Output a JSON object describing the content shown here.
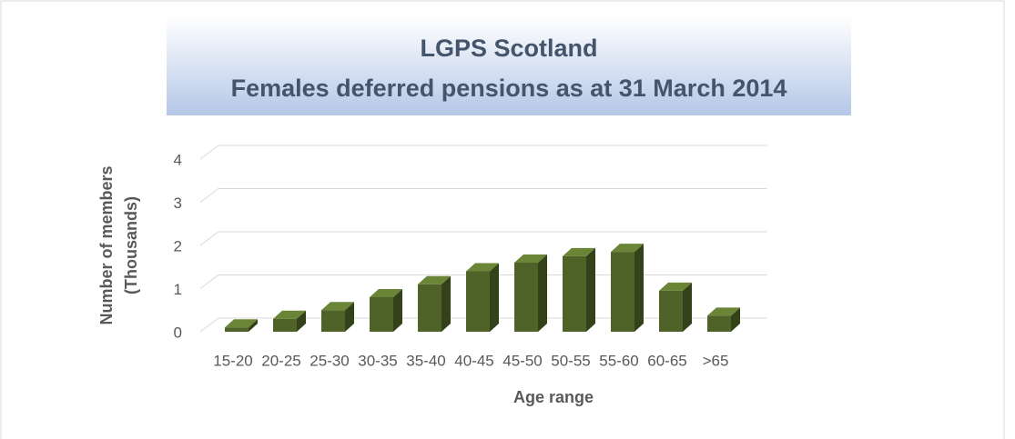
{
  "chart_data": {
    "type": "bar3d",
    "title": "LGPS Scotland",
    "subtitle": "Females deferred pensions as at 31 March 2014",
    "ylabel": [
      "Number of members",
      "(Thousands)"
    ],
    "xlabel": "Age range",
    "categories": [
      "15-20",
      "20-25",
      "25-30",
      "30-35",
      "35-40",
      "40-45",
      "45-50",
      "50-55",
      "55-60",
      "60-65",
      ">65"
    ],
    "values": [
      0.1,
      0.3,
      0.5,
      0.8,
      1.1,
      1.4,
      1.6,
      1.75,
      1.85,
      0.95,
      0.37
    ],
    "color": "#4f6228",
    "ylim": [
      0,
      4
    ],
    "yticks": [
      0,
      1,
      2,
      3,
      4
    ],
    "grid": true
  }
}
